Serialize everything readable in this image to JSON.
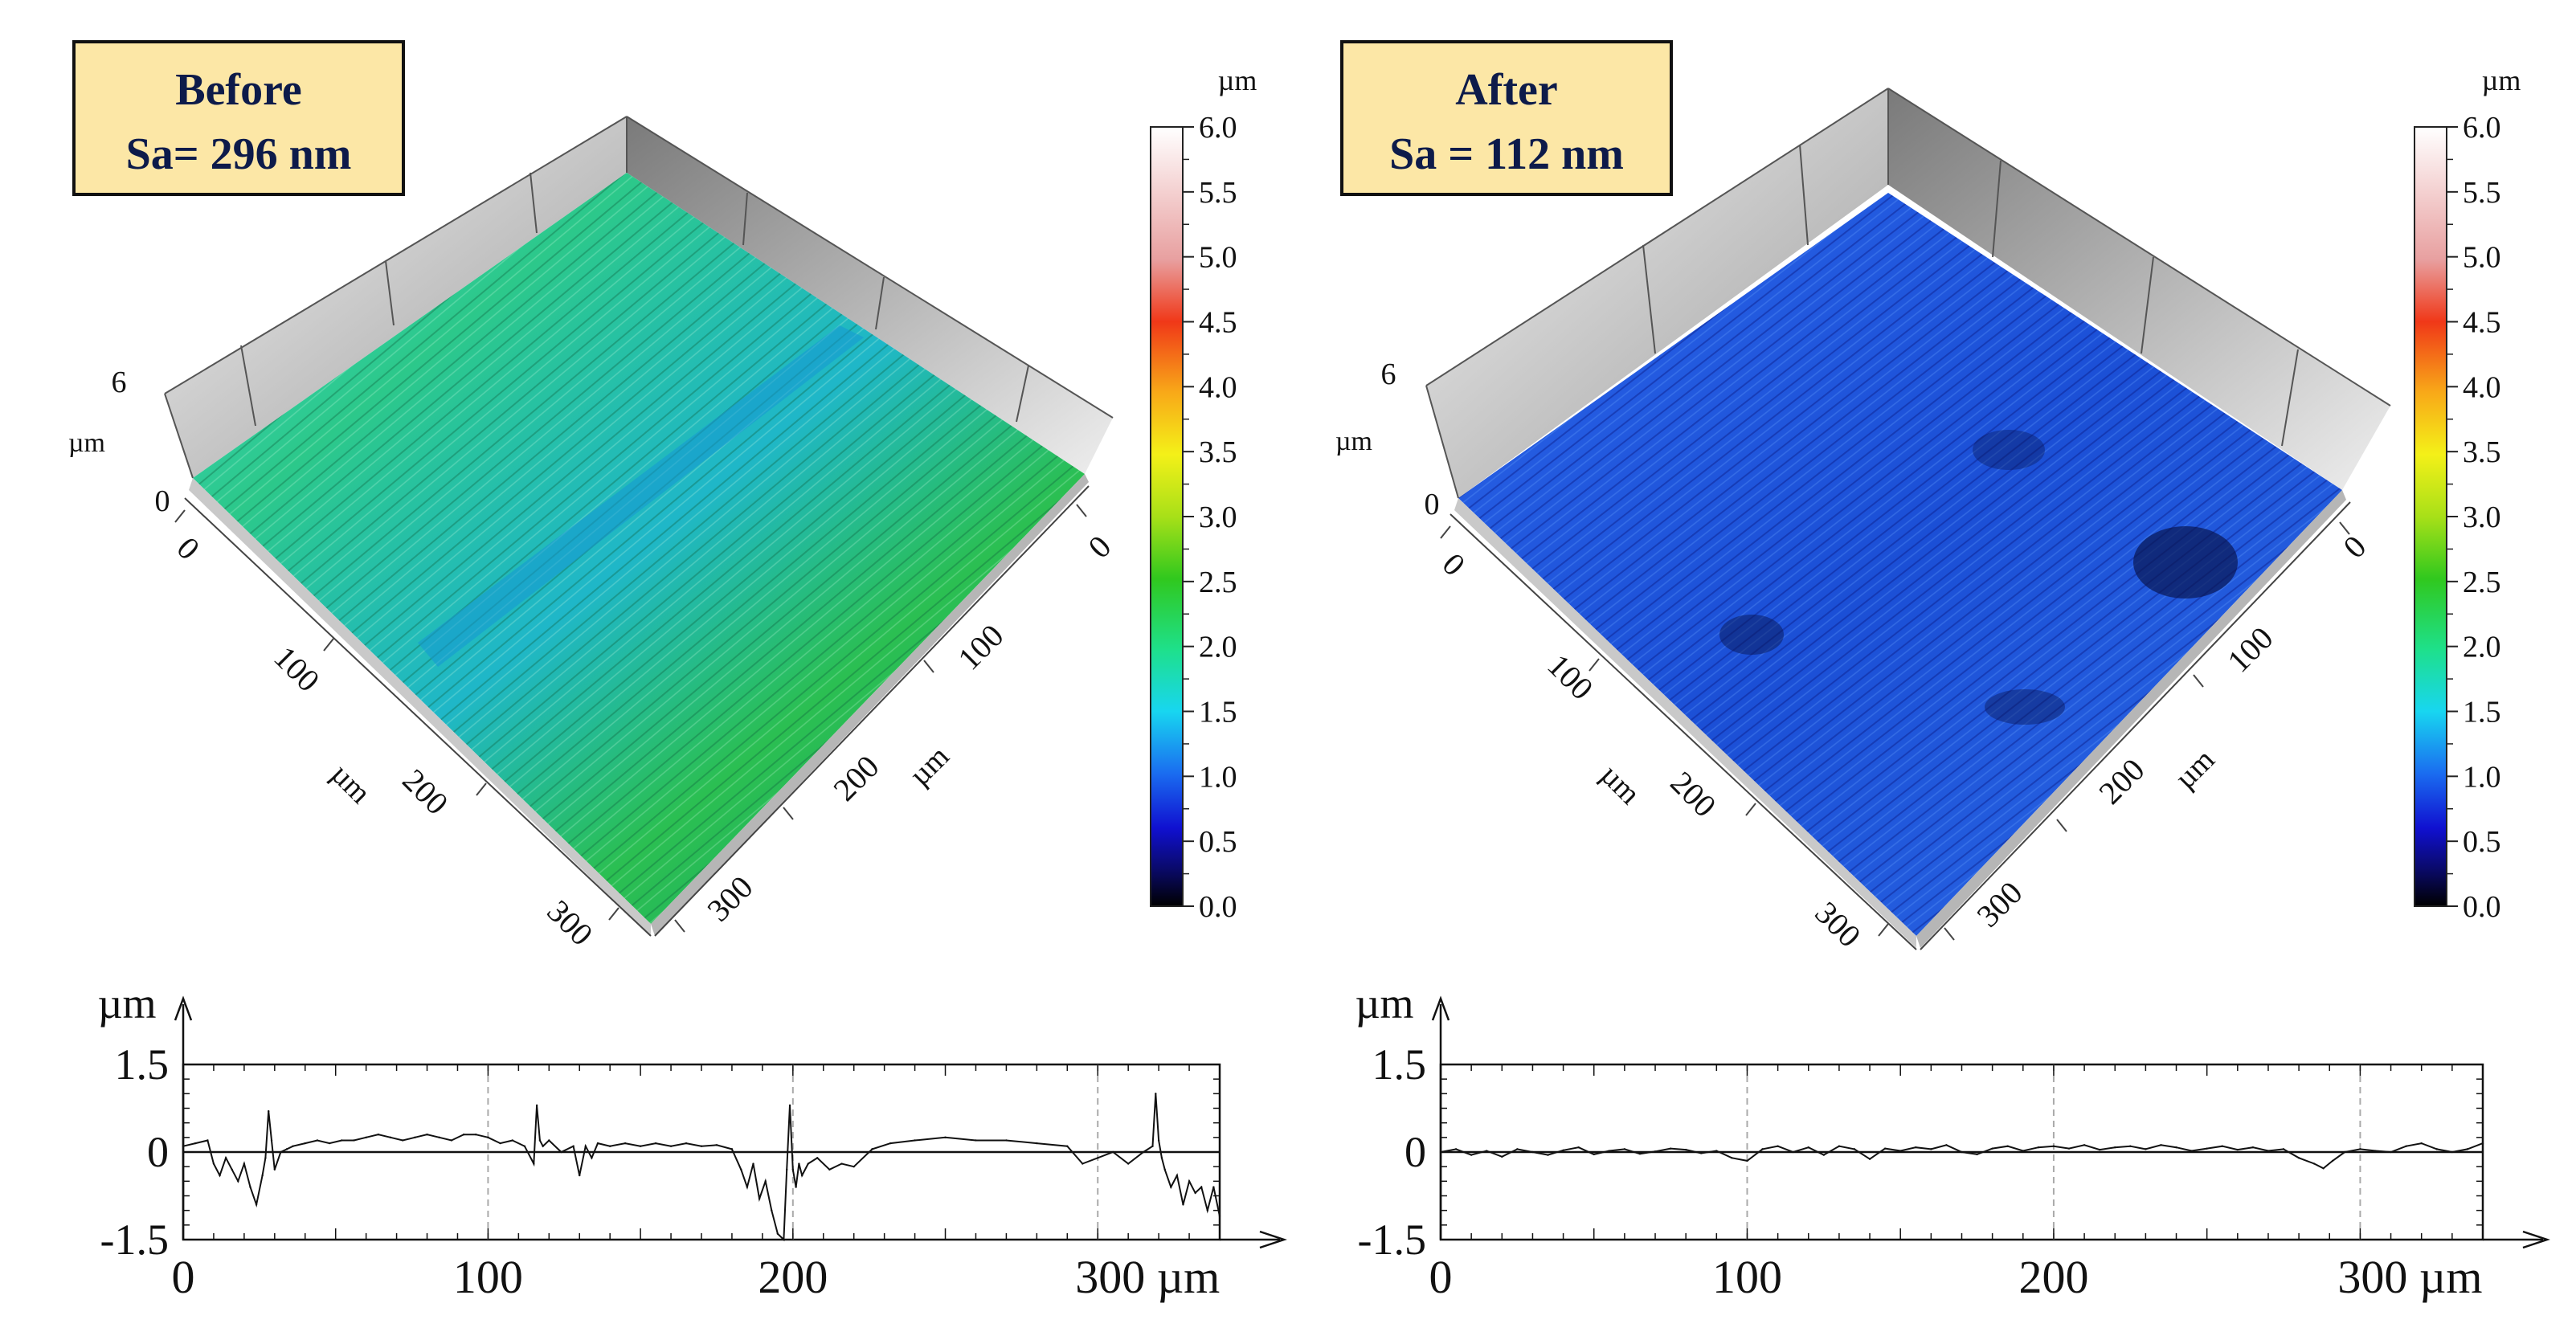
{
  "chart_data": [
    {
      "panel": "before",
      "type": "surface3d",
      "title_lines": [
        "Before",
        "Sa= 296 nm"
      ],
      "label_bg": "#fce7a6",
      "x_ticks": [
        "0",
        "100",
        "200",
        "300"
      ],
      "y_ticks": [
        "0",
        "100",
        "200",
        "300"
      ],
      "x_unit": "µm",
      "y_unit": "µm",
      "z_ticks": [
        "6",
        "0"
      ],
      "z_unit": "µm",
      "z_range": [
        0,
        6
      ],
      "surface_height_range": [
        1.0,
        3.4
      ],
      "dominant_colors": [
        "#12c8c8",
        "#1cd07a",
        "#2ab84a"
      ],
      "colorbar_unit": "µm",
      "colorbar_ticks": [
        "6.0",
        "5.5",
        "5.0",
        "4.5",
        "4.0",
        "3.5",
        "3.0",
        "2.5",
        "2.0",
        "1.5",
        "1.0",
        "0.5",
        "0.0"
      ]
    },
    {
      "panel": "after",
      "type": "surface3d",
      "title_lines": [
        "After",
        "Sa = 112 nm"
      ],
      "label_bg": "#fce7a6",
      "x_ticks": [
        "0",
        "100",
        "200",
        "300"
      ],
      "y_ticks": [
        "0",
        "100",
        "200",
        "300"
      ],
      "x_unit": "µm",
      "y_unit": "µm",
      "z_ticks": [
        "6",
        "0"
      ],
      "z_unit": "µm",
      "z_range": [
        0,
        6
      ],
      "surface_height_range": [
        0.5,
        1.3
      ],
      "dominant_colors": [
        "#1848d8",
        "#2060e0",
        "#0e2aa0"
      ],
      "colorbar_unit": "µm",
      "colorbar_ticks": [
        "6.0",
        "5.5",
        "5.0",
        "4.5",
        "4.0",
        "3.5",
        "3.0",
        "2.5",
        "2.0",
        "1.5",
        "1.0",
        "0.5",
        "0.0"
      ]
    },
    {
      "panel": "before-profile",
      "type": "line",
      "ylabel": "µm",
      "y_ticks": [
        "1.5",
        "0",
        "-1.5"
      ],
      "ylim": [
        -1.5,
        1.5
      ],
      "x_ticks": [
        "0",
        "100",
        "200",
        "300 µm"
      ],
      "xlim": [
        0,
        340
      ],
      "x": [
        0,
        4,
        8,
        10,
        12,
        14,
        16,
        18,
        20,
        22,
        24,
        26,
        27,
        28,
        29,
        30,
        32,
        34,
        36,
        40,
        44,
        48,
        52,
        56,
        60,
        64,
        68,
        72,
        76,
        80,
        84,
        88,
        92,
        96,
        100,
        104,
        108,
        112,
        115,
        116,
        117,
        118,
        120,
        124,
        128,
        130,
        132,
        134,
        136,
        140,
        145,
        150,
        155,
        160,
        165,
        170,
        175,
        180,
        183,
        185,
        187,
        189,
        191,
        193,
        195,
        197,
        198,
        199,
        200,
        201,
        202,
        203,
        205,
        208,
        212,
        216,
        220,
        226,
        232,
        240,
        250,
        260,
        270,
        280,
        290,
        295,
        300,
        305,
        310,
        315,
        318,
        319,
        320,
        321,
        322,
        324,
        326,
        328,
        330,
        332,
        334,
        336,
        338,
        340
      ],
      "values": [
        0.1,
        0.15,
        0.2,
        -0.2,
        -0.4,
        -0.1,
        -0.3,
        -0.5,
        -0.2,
        -0.6,
        -0.9,
        -0.4,
        -0.1,
        0.7,
        0.2,
        -0.3,
        0.0,
        0.05,
        0.1,
        0.15,
        0.2,
        0.15,
        0.2,
        0.2,
        0.25,
        0.3,
        0.25,
        0.2,
        0.25,
        0.3,
        0.25,
        0.2,
        0.3,
        0.3,
        0.25,
        0.15,
        0.2,
        0.1,
        -0.2,
        0.8,
        0.2,
        0.1,
        0.2,
        0.0,
        0.1,
        -0.4,
        0.1,
        -0.1,
        0.15,
        0.1,
        0.15,
        0.1,
        0.15,
        0.1,
        0.15,
        0.1,
        0.12,
        0.05,
        -0.3,
        -0.6,
        -0.2,
        -0.8,
        -0.5,
        -1.0,
        -1.4,
        -1.5,
        -0.3,
        0.8,
        -0.3,
        -0.6,
        -0.2,
        -0.4,
        -0.2,
        -0.1,
        -0.3,
        -0.2,
        -0.25,
        0.05,
        0.15,
        0.2,
        0.25,
        0.2,
        0.2,
        0.15,
        0.1,
        -0.2,
        -0.1,
        0.0,
        -0.2,
        0.0,
        0.1,
        1.0,
        0.2,
        -0.1,
        -0.3,
        -0.6,
        -0.4,
        -0.9,
        -0.5,
        -0.7,
        -0.6,
        -1.0,
        -0.6,
        -1.1
      ]
    },
    {
      "panel": "after-profile",
      "type": "line",
      "ylabel": "µm",
      "y_ticks": [
        "1.5",
        "0",
        "-1.5"
      ],
      "ylim": [
        -1.5,
        1.5
      ],
      "x_ticks": [
        "0",
        "100",
        "200",
        "300 µm"
      ],
      "xlim": [
        0,
        340
      ],
      "x": [
        0,
        5,
        10,
        15,
        20,
        25,
        30,
        35,
        40,
        45,
        50,
        55,
        60,
        65,
        70,
        75,
        80,
        85,
        90,
        95,
        100,
        105,
        110,
        115,
        120,
        125,
        130,
        135,
        140,
        145,
        150,
        155,
        160,
        165,
        170,
        175,
        180,
        185,
        190,
        195,
        200,
        205,
        210,
        215,
        220,
        225,
        230,
        235,
        240,
        245,
        250,
        255,
        260,
        265,
        270,
        275,
        280,
        285,
        288,
        291,
        295,
        300,
        305,
        310,
        315,
        320,
        325,
        330,
        335,
        340
      ],
      "values": [
        0.0,
        0.05,
        -0.05,
        0.02,
        -0.08,
        0.05,
        0.0,
        -0.05,
        0.03,
        0.08,
        -0.04,
        0.02,
        0.05,
        -0.03,
        0.01,
        0.06,
        0.04,
        -0.02,
        0.02,
        -0.1,
        -0.15,
        0.05,
        0.1,
        0.0,
        0.08,
        -0.05,
        0.1,
        0.05,
        -0.12,
        0.06,
        0.02,
        0.08,
        0.05,
        0.12,
        0.0,
        -0.04,
        0.06,
        0.1,
        0.02,
        0.08,
        0.1,
        0.06,
        0.12,
        0.04,
        0.08,
        0.1,
        0.05,
        0.12,
        0.08,
        0.02,
        0.06,
        0.1,
        0.04,
        0.08,
        0.02,
        0.05,
        -0.1,
        -0.2,
        -0.28,
        -0.15,
        0.0,
        0.05,
        0.02,
        0.0,
        0.1,
        0.15,
        0.05,
        0.0,
        0.05,
        0.15
      ]
    }
  ]
}
